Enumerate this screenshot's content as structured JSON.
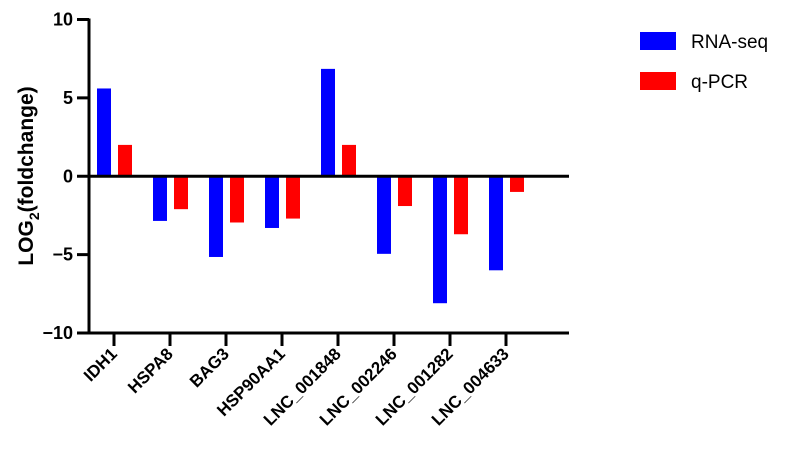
{
  "chart_data": {
    "type": "bar",
    "title": "",
    "xlabel": "",
    "ylabel": "LOG",
    "ylabel_subscript": "2",
    "ylabel_suffix": "(foldchange)",
    "ylim": [
      -10,
      10
    ],
    "yticks": [
      10,
      5,
      0,
      -5,
      -10
    ],
    "grid": false,
    "legend_position": "top-right",
    "categories": [
      "IDH1",
      "HSPA8",
      "BAG3",
      "HSP90AA1",
      "LNC_001848",
      "LNC_002246",
      "LNC_001282",
      "LNC_004633"
    ],
    "series": [
      {
        "name": "RNA-seq",
        "color": "#0000ff",
        "values": [
          5.6,
          -2.85,
          -5.15,
          -3.3,
          6.85,
          -4.95,
          -8.1,
          -6.0
        ]
      },
      {
        "name": "q-PCR",
        "color": "#ff0000",
        "values": [
          2.0,
          -2.1,
          -2.95,
          -2.7,
          2.0,
          -1.9,
          -3.7,
          -1.0
        ]
      }
    ]
  }
}
